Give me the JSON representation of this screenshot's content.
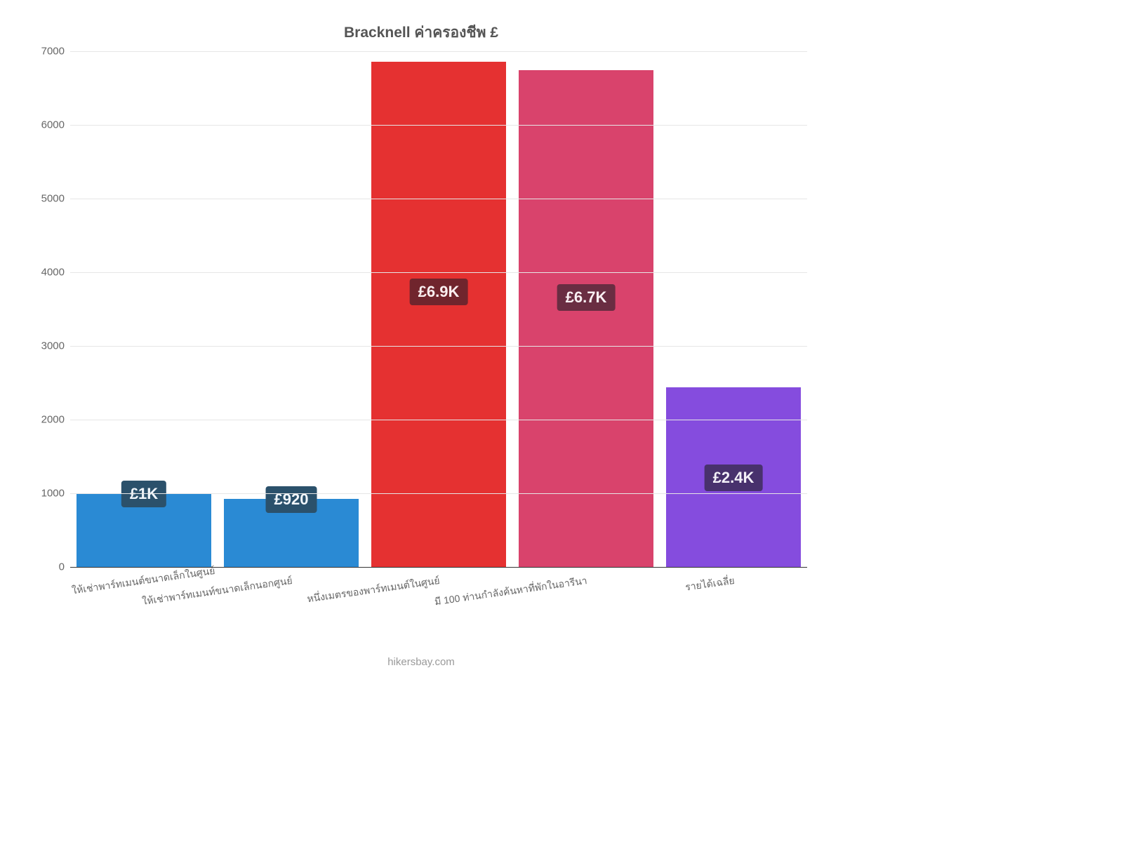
{
  "chart": {
    "type": "bar",
    "title": "Bracknell ค่าครองชีพ £",
    "title_fontsize": 21,
    "title_color": "#555555",
    "background_color": "#ffffff",
    "grid_color": "#e6e6e6",
    "axis_color": "#333333",
    "ylim_max": 7000,
    "ytick_step": 1000,
    "yticks": [
      0,
      1000,
      2000,
      3000,
      4000,
      5000,
      6000,
      7000
    ],
    "tick_fontsize": 15,
    "tick_color": "#666666",
    "bar_width_ratio": 0.91,
    "value_label_fontsize": 22,
    "xlabel_fontsize": 14,
    "xlabel_rotation_deg": -8,
    "categories": [
      {
        "label": "ให้เช่าพาร์ทเมนต์ขนาดเล็กในศูนย์",
        "value": 1000,
        "value_label": "£1K",
        "bar_color": "#2a8ad4",
        "badge_bg": "#2b516b",
        "badge_text": "#f1f6fb"
      },
      {
        "label": "ให้เช่าพาร์ทเมนท์ขนาดเล็กนอกศูนย์",
        "value": 920,
        "value_label": "£920",
        "bar_color": "#2a8ad4",
        "badge_bg": "#2b516b",
        "badge_text": "#f1f6fb"
      },
      {
        "label": "หนึ่งเมตรของพาร์ทเมนต์ในศูนย์",
        "value": 6860,
        "value_label": "£6.9K",
        "bar_color": "#e53131",
        "badge_bg": "#70252d",
        "badge_text": "#fbeff0"
      },
      {
        "label": "มี 100 ท่านกำลังค้นหาที่พักในอารีนา",
        "value": 6740,
        "value_label": "£6.7K",
        "bar_color": "#d9436c",
        "badge_bg": "#6a2d42",
        "badge_text": "#faf0f3"
      },
      {
        "label": "รายได้เฉลี่ย",
        "value": 2440,
        "value_label": "£2.4K",
        "bar_color": "#854cde",
        "badge_bg": "#48316d",
        "badge_text": "#f3f0f8"
      }
    ],
    "attribution": "hikersbay.com",
    "attribution_color": "#999999",
    "attribution_fontsize": 15
  }
}
